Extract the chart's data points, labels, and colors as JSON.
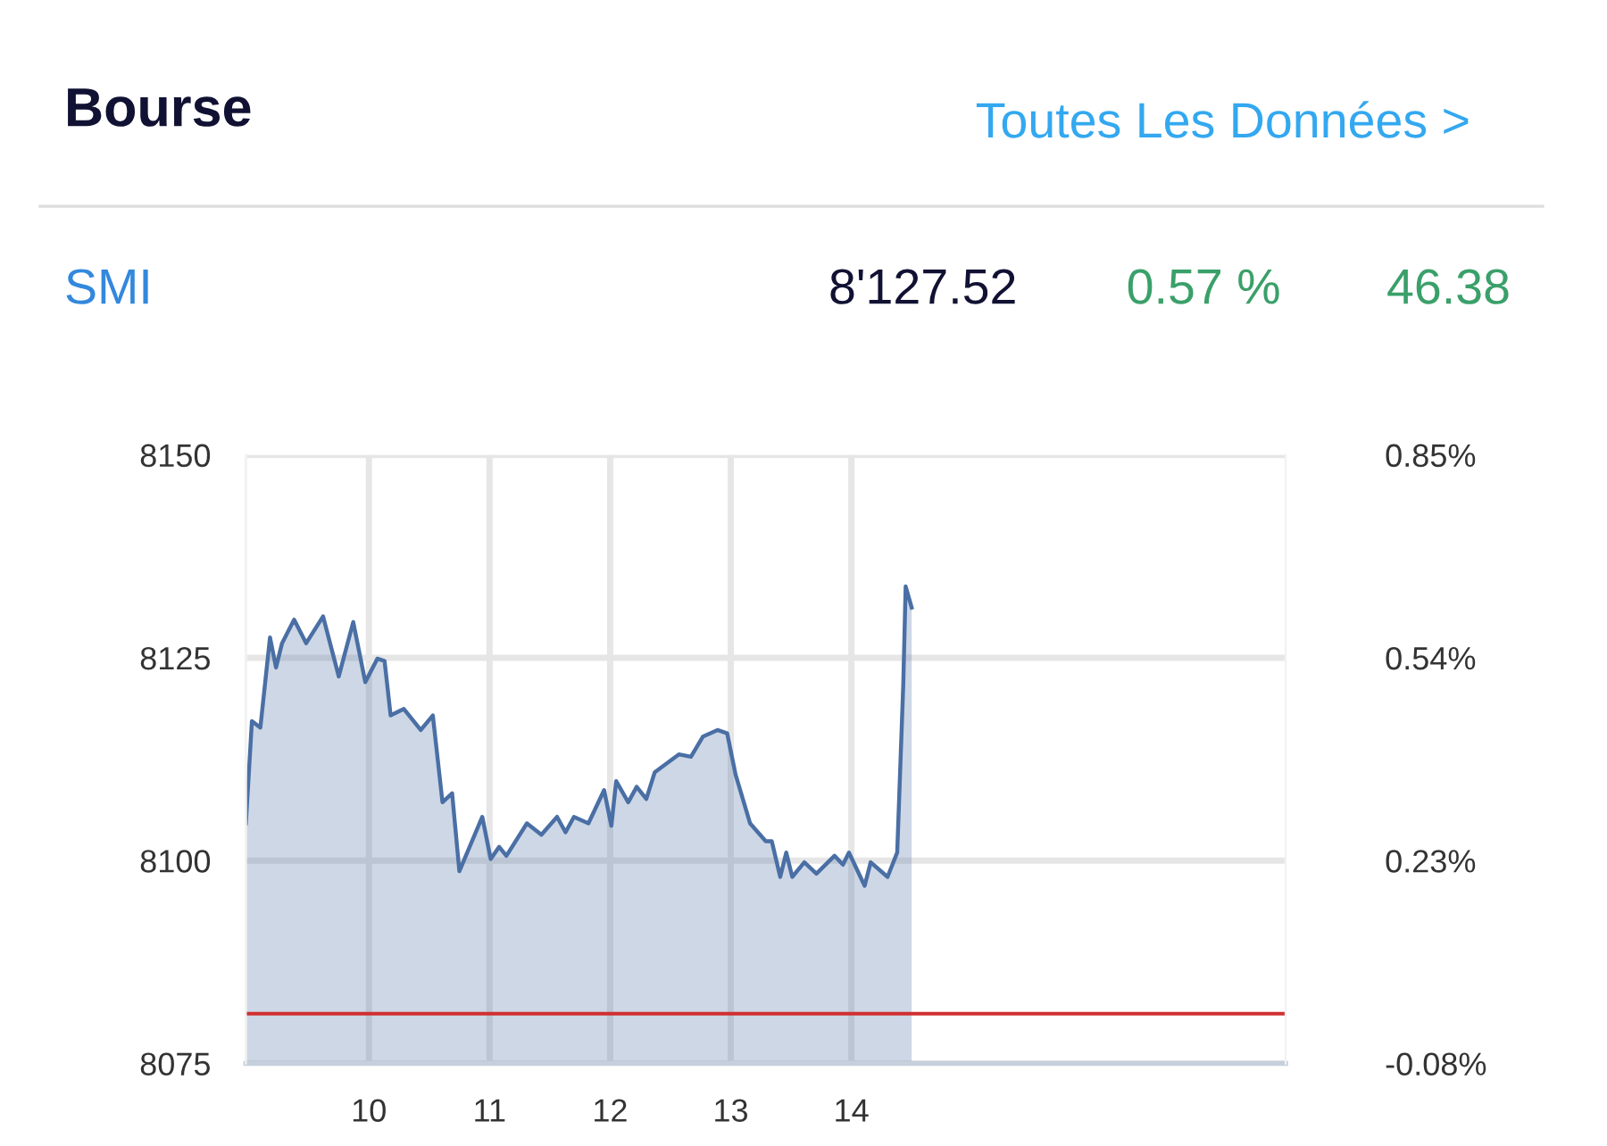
{
  "chart_data": {
    "type": "area",
    "title": "Bourse",
    "annotations": [
      "Toutes Les Données >",
      "SMI",
      "8'127.52",
      "0.57 %",
      "46.38"
    ],
    "series": [
      {
        "color": "#4a6fa5",
        "x": [
          8.98,
          9.03,
          9.1,
          9.18,
          9.23,
          9.28,
          9.38,
          9.48,
          9.62,
          9.75,
          9.87,
          9.97,
          10.07,
          10.13,
          10.18,
          10.29,
          10.43,
          10.53,
          10.61,
          10.69,
          10.75,
          10.94,
          11.01,
          11.08,
          11.14,
          11.31,
          11.43,
          11.56,
          11.63,
          11.7,
          11.82,
          11.95,
          12.01,
          12.05,
          12.15,
          12.22,
          12.3,
          12.37,
          12.57,
          12.67,
          12.77,
          12.89,
          12.97,
          13.04,
          13.16,
          13.29,
          13.34,
          13.41,
          13.46,
          13.51,
          13.61,
          13.71,
          13.86,
          13.93,
          13.98,
          14.11,
          14.16,
          14.3,
          14.38,
          14.43,
          14.45,
          14.5
        ],
        "values": [
          8104.6,
          8117.2,
          8116.4,
          8127.5,
          8123.8,
          8126.8,
          8129.7,
          8126.8,
          8130.1,
          8122.7,
          8129.4,
          8122.0,
          8124.9,
          8124.6,
          8117.9,
          8118.7,
          8116.1,
          8117.9,
          8107.2,
          8108.3,
          8098.7,
          8105.4,
          8100.2,
          8101.7,
          8100.6,
          8104.6,
          8103.2,
          8105.4,
          8103.5,
          8105.4,
          8104.6,
          8108.7,
          8104.3,
          8109.8,
          8107.2,
          8109.1,
          8107.6,
          8110.9,
          8113.1,
          8112.8,
          8115.3,
          8116.1,
          8115.7,
          8110.6,
          8104.6,
          8102.4,
          8102.4,
          8098.0,
          8101.0,
          8098.0,
          8099.8,
          8098.4,
          8100.6,
          8099.5,
          8101.0,
          8096.9,
          8099.8,
          8098.0,
          8101.0,
          8121.6,
          8133.8,
          8131.2
        ]
      }
    ],
    "xlim": [
      8.98,
      17.6
    ],
    "xticks": [
      10,
      11,
      12,
      13,
      14
    ],
    "ylim": [
      8075,
      8150
    ],
    "yticks": [
      8075,
      8100,
      8125,
      8150
    ],
    "y2lim": [
      -0.08,
      0.85
    ],
    "y2ticks": [
      {
        "value": -0.08,
        "label": "-0.08%"
      },
      {
        "value": 0.23,
        "label": "0.23%"
      },
      {
        "value": 0.54,
        "label": "0.54%"
      },
      {
        "value": 0.85,
        "label": "0.85%"
      }
    ],
    "ref_lines": [
      {
        "axis": "y",
        "value": 8081.14,
        "color": "#d03030"
      }
    ],
    "grid": true
  }
}
